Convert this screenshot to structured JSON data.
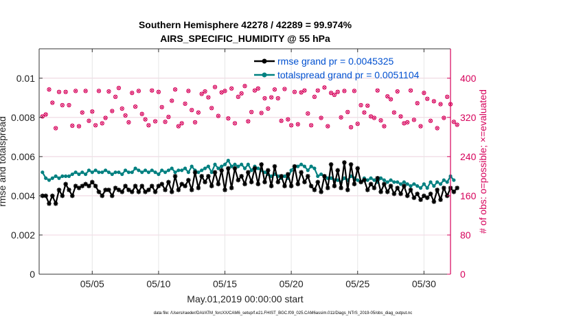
{
  "chart_data": {
    "type": "line",
    "title_line1": "Southern Hemisphere 42278 / 42289 = 99.974%",
    "title_line2": "AIRS_SPECIFIC_HUMIDITY @ 55 hPa",
    "xlabel": "May.01,2019 00:00:00 start",
    "ylabel": "rmse and totalspread",
    "ylabel_right": "# of obs: o=possible; ×=evaluated",
    "footer": "data file: /Users/raeder/DAI/ATM_forcXX/CAM6_setup/f.e21.FHIST_BGC.f09_025.CAM6assim.011/Diags_NTrS_2019-05/obs_diag_output.nc",
    "xlim": [
      1,
      32
    ],
    "ylim": [
      0,
      0.0115
    ],
    "ylim_right": [
      0,
      460
    ],
    "x_ticks": [
      {
        "value": 5,
        "label": "05/05"
      },
      {
        "value": 10,
        "label": "05/10"
      },
      {
        "value": 15,
        "label": "05/15"
      },
      {
        "value": 20,
        "label": "05/20"
      },
      {
        "value": 25,
        "label": "05/25"
      },
      {
        "value": 30,
        "label": "05/30"
      }
    ],
    "y_ticks": [
      {
        "value": 0,
        "label": "0"
      },
      {
        "value": 0.002,
        "label": "0.002"
      },
      {
        "value": 0.004,
        "label": "0.004"
      },
      {
        "value": 0.006,
        "label": "0.006"
      },
      {
        "value": 0.008,
        "label": "0.008"
      },
      {
        "value": 0.01,
        "label": "0.01"
      }
    ],
    "y_ticks_right": [
      {
        "value": 0,
        "label": "0"
      },
      {
        "value": 80,
        "label": "80"
      },
      {
        "value": 160,
        "label": "160"
      },
      {
        "value": 240,
        "label": "240"
      },
      {
        "value": 320,
        "label": "320"
      },
      {
        "value": 400,
        "label": "400"
      }
    ],
    "grid": true,
    "legend_position": "top-right",
    "x_start": 1.25,
    "x_step": 0.25,
    "series": [
      {
        "name": "rmse grand pr = 0.0045325",
        "color": "#000000",
        "marker": "asterisk",
        "values": [
          0.004,
          0.004,
          0.0036,
          0.004,
          0.0036,
          0.0043,
          0.004,
          0.0046,
          0.0043,
          0.004,
          0.0045,
          0.0044,
          0.0045,
          0.0046,
          0.0045,
          0.0047,
          0.0045,
          0.0042,
          0.004,
          0.0043,
          0.0043,
          0.004,
          0.0044,
          0.0043,
          0.0042,
          0.0045,
          0.0043,
          0.0042,
          0.0045,
          0.0042,
          0.0045,
          0.0042,
          0.0043,
          0.0045,
          0.0042,
          0.0045,
          0.0046,
          0.0043,
          0.0047,
          0.0042,
          0.005,
          0.0043,
          0.0046,
          0.0045,
          0.0048,
          0.0043,
          0.0052,
          0.0044,
          0.005,
          0.0047,
          0.005,
          0.0045,
          0.0052,
          0.0046,
          0.0053,
          0.0043,
          0.0054,
          0.0044,
          0.0054,
          0.0048,
          0.005,
          0.0046,
          0.0052,
          0.0047,
          0.0054,
          0.0046,
          0.0056,
          0.0047,
          0.0053,
          0.0045,
          0.0055,
          0.0047,
          0.005,
          0.0045,
          0.0051,
          0.0045,
          0.0055,
          0.0046,
          0.0052,
          0.0047,
          0.005,
          0.0045,
          0.0043,
          0.0047,
          0.0042,
          0.005,
          0.0044,
          0.0056,
          0.0045,
          0.0053,
          0.0044,
          0.0057,
          0.0043,
          0.0056,
          0.0046,
          0.0054,
          0.0047,
          0.0048,
          0.0043,
          0.0046,
          0.0044,
          0.0049,
          0.0042,
          0.0046,
          0.0042,
          0.0045,
          0.0041,
          0.0044,
          0.0041,
          0.0045,
          0.004,
          0.0043,
          0.0039,
          0.0041,
          0.0038,
          0.004,
          0.0039,
          0.0041,
          0.0037,
          0.0043,
          0.0038,
          0.0044,
          0.004,
          0.0044,
          0.0042,
          0.0044
        ]
      },
      {
        "name": "totalspread grand pr = 0.0051104",
        "color": "#008080",
        "marker": "dot",
        "values": [
          0.0052,
          0.0049,
          0.0048,
          0.0049,
          0.005,
          0.0049,
          0.005,
          0.005,
          0.005,
          0.0051,
          0.0052,
          0.0051,
          0.0052,
          0.0051,
          0.0053,
          0.0052,
          0.0053,
          0.0052,
          0.0052,
          0.0053,
          0.0052,
          0.0051,
          0.0052,
          0.0052,
          0.0051,
          0.0053,
          0.0052,
          0.0052,
          0.0054,
          0.0053,
          0.0052,
          0.0053,
          0.0052,
          0.0053,
          0.0052,
          0.0051,
          0.0053,
          0.0052,
          0.0053,
          0.0054,
          0.0052,
          0.0053,
          0.0053,
          0.0054,
          0.0052,
          0.0055,
          0.0053,
          0.0052,
          0.0053,
          0.0054,
          0.0055,
          0.0052,
          0.0056,
          0.0054,
          0.0055,
          0.0056,
          0.0058,
          0.0055,
          0.0056,
          0.0055,
          0.0056,
          0.0054,
          0.0056,
          0.0053,
          0.0055,
          0.0054,
          0.0053,
          0.0052,
          0.0051,
          0.005,
          0.0051,
          0.005,
          0.0049,
          0.005,
          0.0049,
          0.0053,
          0.0055,
          0.0055,
          0.0056,
          0.0055,
          0.0053,
          0.0055,
          0.0054,
          0.005,
          0.0051,
          0.005,
          0.0049,
          0.0049,
          0.0048,
          0.0048,
          0.0047,
          0.0049,
          0.0048,
          0.005,
          0.0049,
          0.0048,
          0.0047,
          0.0049,
          0.0048,
          0.0049,
          0.0048,
          0.0047,
          0.0049,
          0.0048,
          0.0047,
          0.0048,
          0.0047,
          0.0047,
          0.0046,
          0.0047,
          0.0046,
          0.0045,
          0.0046,
          0.0045,
          0.0044,
          0.0046,
          0.0044,
          0.0047,
          0.0045,
          0.0047,
          0.0046,
          0.0048,
          0.0047,
          0.005,
          0.0048
        ]
      },
      {
        "name": "# of obs",
        "axis": "right",
        "color": "#d6005a",
        "marker": "circle-cross",
        "values": [
          322,
          326,
          377,
          350,
          298,
          372,
          345,
          372,
          345,
          303,
          374,
          302,
          330,
          374,
          313,
          332,
          304,
          374,
          308,
          319,
          373,
          333,
          362,
          380,
          338,
          324,
          310,
          370,
          342,
          374,
          327,
          316,
          304,
          375,
          312,
          372,
          341,
          311,
          321,
          354,
          377,
          302,
          308,
          348,
          374,
          335,
          310,
          330,
          368,
          373,
          361,
          339,
          382,
          323,
          371,
          374,
          318,
          379,
          308,
          362,
          369,
          384,
          312,
          331,
          375,
          379,
          329,
          359,
          338,
          361,
          377,
          359,
          313,
          378,
          316,
          304,
          372,
          306,
          371,
          375,
          328,
          304,
          362,
          375,
          319,
          381,
          302,
          370,
          366,
          372,
          320,
          374,
          331,
          300,
          374,
          307,
          345,
          330,
          344,
          322,
          319,
          375,
          314,
          302,
          363,
          357,
          330,
          373,
          322,
          308,
          310,
          375,
          315,
          349,
          302,
          370,
          358,
          313,
          353,
          298,
          347,
          319,
          362,
          347,
          311,
          305
        ]
      }
    ]
  }
}
